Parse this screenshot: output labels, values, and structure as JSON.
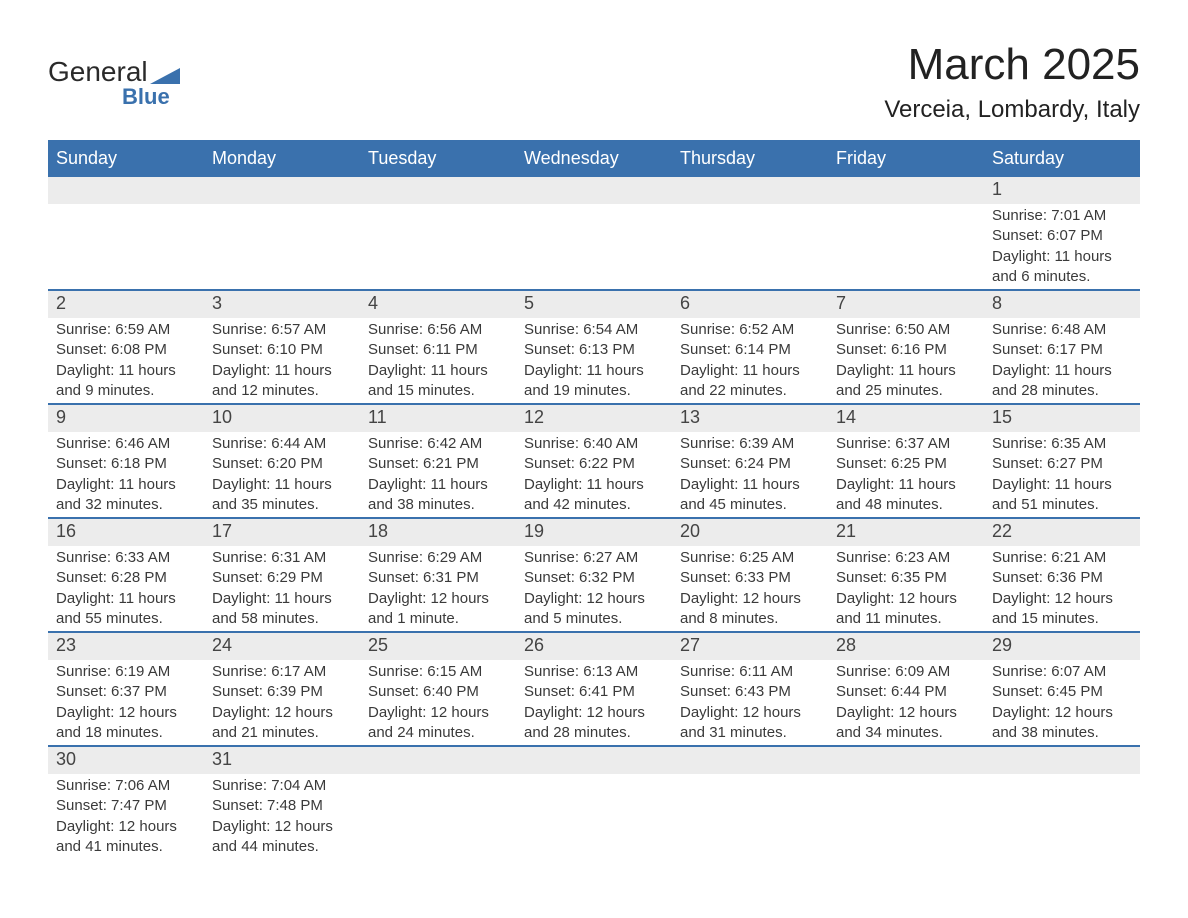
{
  "brand": {
    "name1": "General",
    "name2": "Blue"
  },
  "title": "March 2025",
  "location": "Verceia, Lombardy, Italy",
  "colors": {
    "header_bg": "#3a71ad",
    "header_text": "#ffffff",
    "daybar_bg": "#ececec",
    "daybar_border": "#3a71ad",
    "body_text": "#3a3a3a",
    "page_bg": "#ffffff"
  },
  "typography": {
    "title_fontsize": 44,
    "location_fontsize": 24,
    "header_fontsize": 18,
    "daynum_fontsize": 18,
    "body_fontsize": 15,
    "font_family": "Arial"
  },
  "layout": {
    "columns": 7,
    "rows": 6
  },
  "weekdays": [
    "Sunday",
    "Monday",
    "Tuesday",
    "Wednesday",
    "Thursday",
    "Friday",
    "Saturday"
  ],
  "labels": {
    "sunrise": "Sunrise:",
    "sunset": "Sunset:",
    "daylight": "Daylight:"
  },
  "weeks": [
    [
      null,
      null,
      null,
      null,
      null,
      null,
      {
        "n": "1",
        "sunrise": "7:01 AM",
        "sunset": "6:07 PM",
        "daylight": "11 hours and 6 minutes."
      }
    ],
    [
      {
        "n": "2",
        "sunrise": "6:59 AM",
        "sunset": "6:08 PM",
        "daylight": "11 hours and 9 minutes."
      },
      {
        "n": "3",
        "sunrise": "6:57 AM",
        "sunset": "6:10 PM",
        "daylight": "11 hours and 12 minutes."
      },
      {
        "n": "4",
        "sunrise": "6:56 AM",
        "sunset": "6:11 PM",
        "daylight": "11 hours and 15 minutes."
      },
      {
        "n": "5",
        "sunrise": "6:54 AM",
        "sunset": "6:13 PM",
        "daylight": "11 hours and 19 minutes."
      },
      {
        "n": "6",
        "sunrise": "6:52 AM",
        "sunset": "6:14 PM",
        "daylight": "11 hours and 22 minutes."
      },
      {
        "n": "7",
        "sunrise": "6:50 AM",
        "sunset": "6:16 PM",
        "daylight": "11 hours and 25 minutes."
      },
      {
        "n": "8",
        "sunrise": "6:48 AM",
        "sunset": "6:17 PM",
        "daylight": "11 hours and 28 minutes."
      }
    ],
    [
      {
        "n": "9",
        "sunrise": "6:46 AM",
        "sunset": "6:18 PM",
        "daylight": "11 hours and 32 minutes."
      },
      {
        "n": "10",
        "sunrise": "6:44 AM",
        "sunset": "6:20 PM",
        "daylight": "11 hours and 35 minutes."
      },
      {
        "n": "11",
        "sunrise": "6:42 AM",
        "sunset": "6:21 PM",
        "daylight": "11 hours and 38 minutes."
      },
      {
        "n": "12",
        "sunrise": "6:40 AM",
        "sunset": "6:22 PM",
        "daylight": "11 hours and 42 minutes."
      },
      {
        "n": "13",
        "sunrise": "6:39 AM",
        "sunset": "6:24 PM",
        "daylight": "11 hours and 45 minutes."
      },
      {
        "n": "14",
        "sunrise": "6:37 AM",
        "sunset": "6:25 PM",
        "daylight": "11 hours and 48 minutes."
      },
      {
        "n": "15",
        "sunrise": "6:35 AM",
        "sunset": "6:27 PM",
        "daylight": "11 hours and 51 minutes."
      }
    ],
    [
      {
        "n": "16",
        "sunrise": "6:33 AM",
        "sunset": "6:28 PM",
        "daylight": "11 hours and 55 minutes."
      },
      {
        "n": "17",
        "sunrise": "6:31 AM",
        "sunset": "6:29 PM",
        "daylight": "11 hours and 58 minutes."
      },
      {
        "n": "18",
        "sunrise": "6:29 AM",
        "sunset": "6:31 PM",
        "daylight": "12 hours and 1 minute."
      },
      {
        "n": "19",
        "sunrise": "6:27 AM",
        "sunset": "6:32 PM",
        "daylight": "12 hours and 5 minutes."
      },
      {
        "n": "20",
        "sunrise": "6:25 AM",
        "sunset": "6:33 PM",
        "daylight": "12 hours and 8 minutes."
      },
      {
        "n": "21",
        "sunrise": "6:23 AM",
        "sunset": "6:35 PM",
        "daylight": "12 hours and 11 minutes."
      },
      {
        "n": "22",
        "sunrise": "6:21 AM",
        "sunset": "6:36 PM",
        "daylight": "12 hours and 15 minutes."
      }
    ],
    [
      {
        "n": "23",
        "sunrise": "6:19 AM",
        "sunset": "6:37 PM",
        "daylight": "12 hours and 18 minutes."
      },
      {
        "n": "24",
        "sunrise": "6:17 AM",
        "sunset": "6:39 PM",
        "daylight": "12 hours and 21 minutes."
      },
      {
        "n": "25",
        "sunrise": "6:15 AM",
        "sunset": "6:40 PM",
        "daylight": "12 hours and 24 minutes."
      },
      {
        "n": "26",
        "sunrise": "6:13 AM",
        "sunset": "6:41 PM",
        "daylight": "12 hours and 28 minutes."
      },
      {
        "n": "27",
        "sunrise": "6:11 AM",
        "sunset": "6:43 PM",
        "daylight": "12 hours and 31 minutes."
      },
      {
        "n": "28",
        "sunrise": "6:09 AM",
        "sunset": "6:44 PM",
        "daylight": "12 hours and 34 minutes."
      },
      {
        "n": "29",
        "sunrise": "6:07 AM",
        "sunset": "6:45 PM",
        "daylight": "12 hours and 38 minutes."
      }
    ],
    [
      {
        "n": "30",
        "sunrise": "7:06 AM",
        "sunset": "7:47 PM",
        "daylight": "12 hours and 41 minutes."
      },
      {
        "n": "31",
        "sunrise": "7:04 AM",
        "sunset": "7:48 PM",
        "daylight": "12 hours and 44 minutes."
      },
      null,
      null,
      null,
      null,
      null
    ]
  ]
}
